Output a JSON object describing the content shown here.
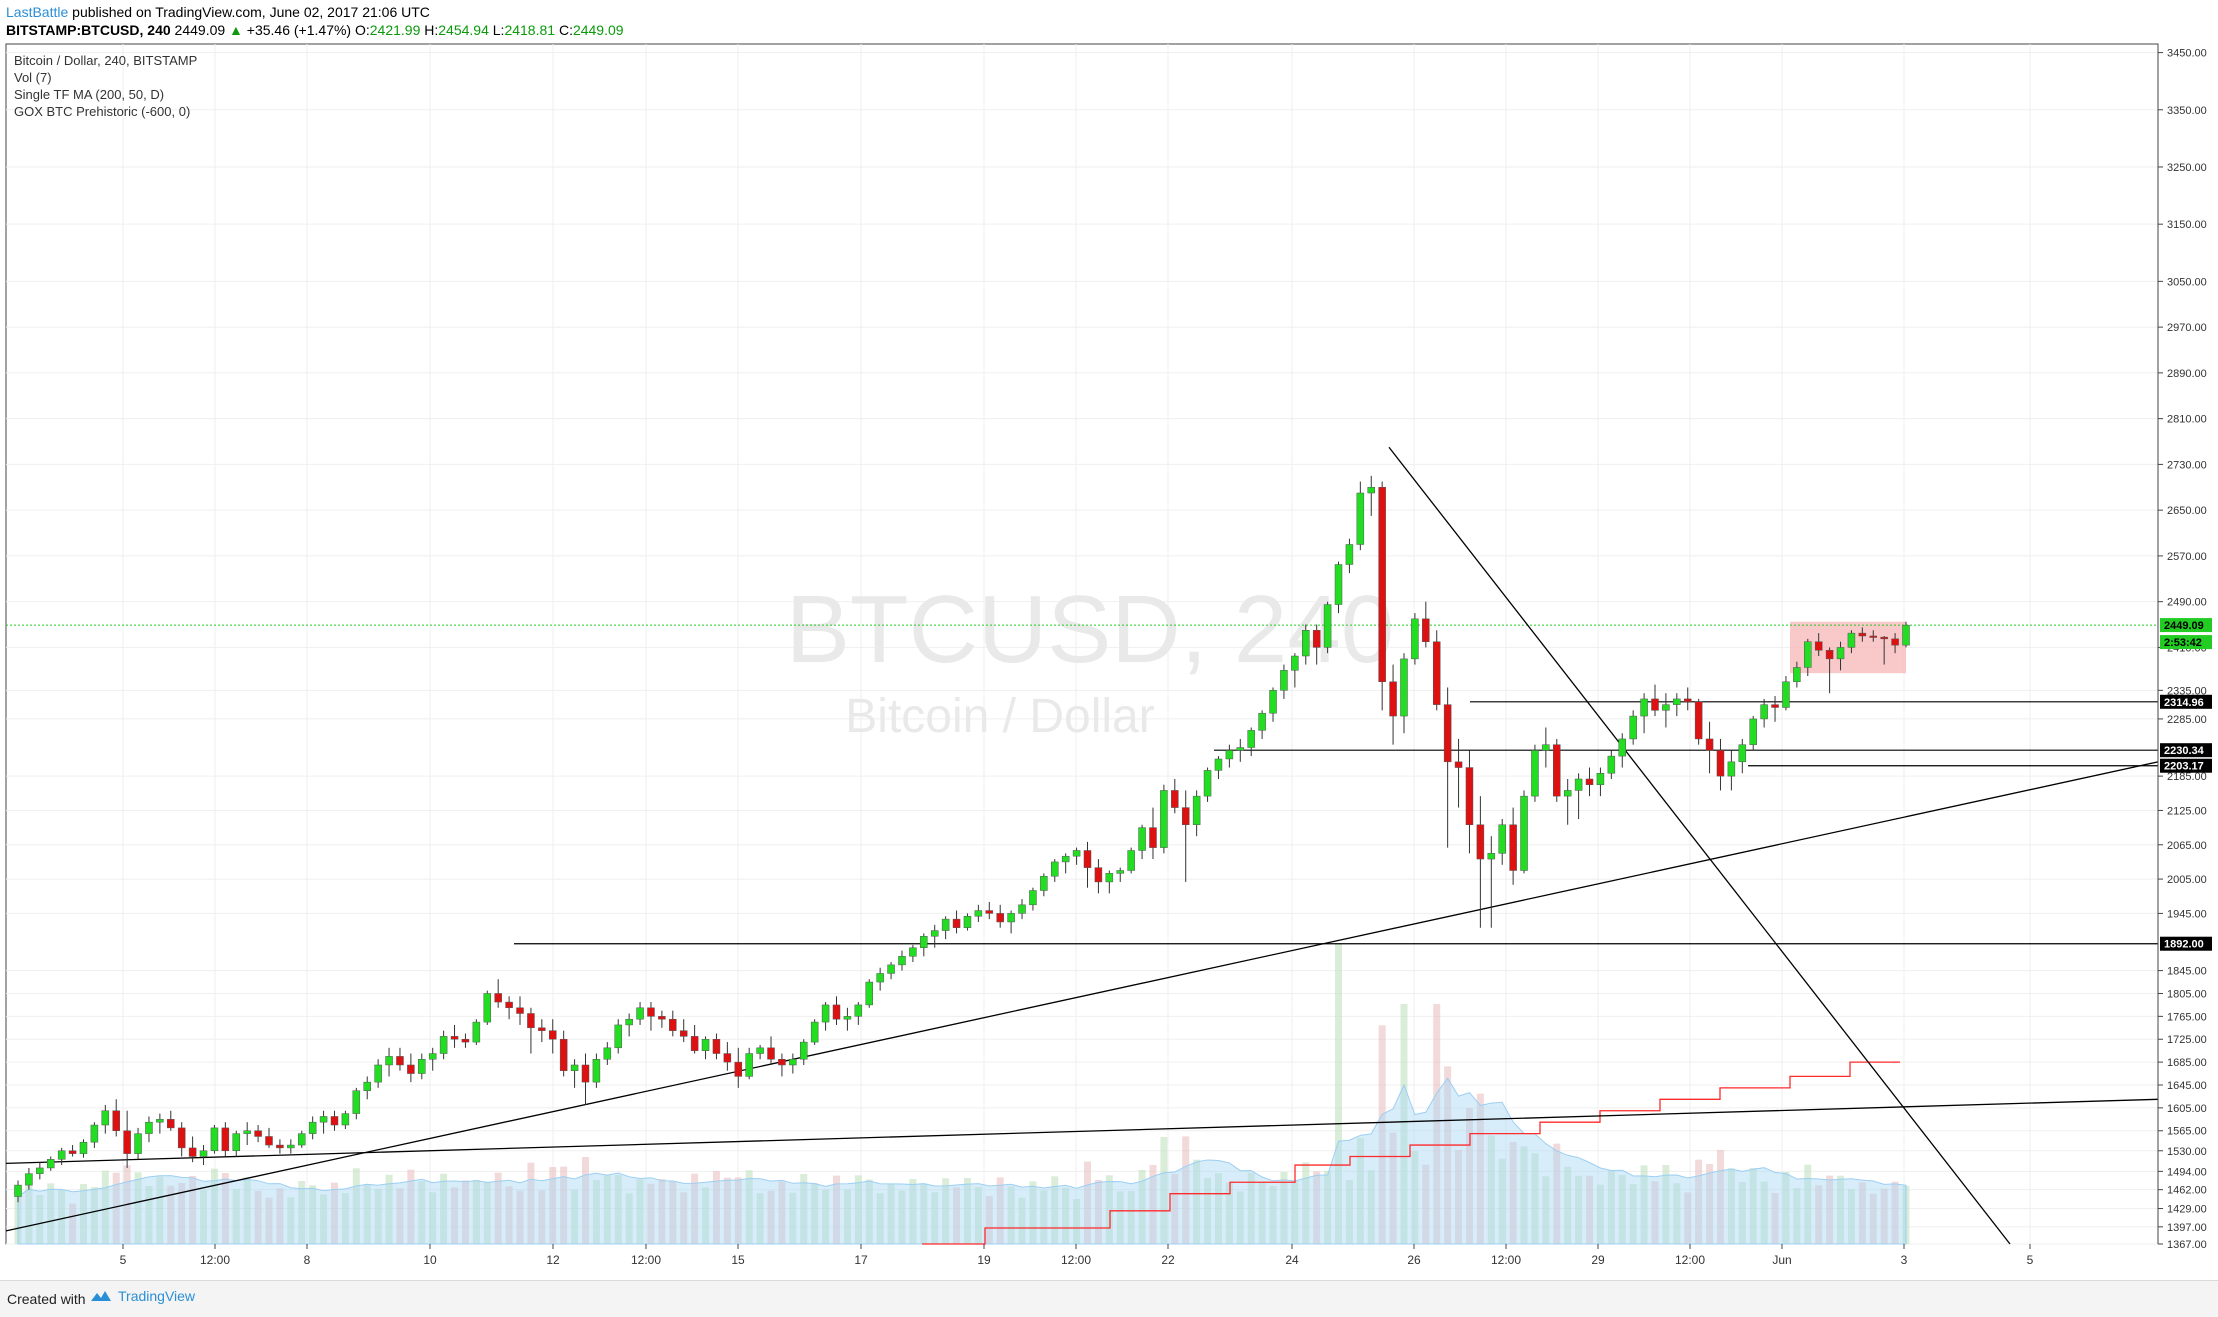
{
  "header": {
    "author": "LastBattle",
    "published_text": " published on TradingView.com, June 02, 2017 21:06 UTC",
    "symbol": "BITSTAMP:BTCUSD, 240",
    "last": "2449.09",
    "change": "+35.46 (+1.47%)",
    "open_label": "O:",
    "open": "2421.99",
    "high_label": "H:",
    "high": "2454.94",
    "low_label": "L:",
    "low": "2418.81",
    "close_label": "C:",
    "close": "2449.09"
  },
  "legend": {
    "line1": "Bitcoin / Dollar, 240, BITSTAMP",
    "line2": "Vol (7)",
    "line3": "Single TF MA (200, 50, D)",
    "line4": "GOX BTC Prehistoric (-600, 0)"
  },
  "watermark": {
    "symbol": "BTCUSD, 240",
    "name": "Bitcoin / Dollar"
  },
  "footer": {
    "created_with": "Created with",
    "brand": "TradingView"
  },
  "colors": {
    "up": "#22dd22",
    "down": "#dd1111",
    "line": "#000000",
    "ma": "#ff2a2a",
    "grid": "#efefef",
    "current_line": "#22cc22",
    "zone": "#f7b6b6"
  },
  "chart_data": {
    "type": "candlestick",
    "symbol": "BTCUSD",
    "exchange": "BITSTAMP",
    "interval": "240",
    "ylim": [
      1367,
      3465
    ],
    "y_ticks": [
      "3450.00",
      "3350.00",
      "3250.00",
      "3150.00",
      "3050.00",
      "2970.00",
      "2890.00",
      "2810.00",
      "2730.00",
      "2650.00",
      "2570.00",
      "2490.00",
      "2410.00",
      "2335.00",
      "2285.00",
      "2185.00",
      "2125.00",
      "2065.00",
      "2005.00",
      "1945.00",
      "1845.00",
      "1805.00",
      "1765.00",
      "1725.00",
      "1685.00",
      "1645.00",
      "1605.00",
      "1565.00",
      "1530.00",
      "1494.00",
      "1462.00",
      "1429.00",
      "1397.00",
      "1367.00"
    ],
    "x_ticks": [
      "5",
      "12:00",
      "8",
      "10",
      "12",
      "12:00",
      "15",
      "17",
      "19",
      "12:00",
      "22",
      "24",
      "26",
      "12:00",
      "29",
      "12:00",
      "Jun",
      "3",
      "5"
    ],
    "price_labels": [
      {
        "value": "2449.09",
        "kind": "last"
      },
      {
        "value": "2:53:42",
        "kind": "countdown"
      },
      {
        "value": "2314.96",
        "kind": "level"
      },
      {
        "value": "2230.34",
        "kind": "level"
      },
      {
        "value": "2203.17",
        "kind": "level"
      },
      {
        "value": "1892.00",
        "kind": "level"
      }
    ],
    "horizontal_levels": [
      2314.96,
      2230.34,
      2203.17,
      1892.0
    ],
    "resistance_zone": [
      2365,
      2455
    ],
    "candles": [
      [
        1450,
        1478,
        1440,
        1470
      ],
      [
        1470,
        1500,
        1462,
        1490
      ],
      [
        1490,
        1510,
        1480,
        1500
      ],
      [
        1500,
        1520,
        1495,
        1515
      ],
      [
        1515,
        1535,
        1505,
        1530
      ],
      [
        1530,
        1540,
        1520,
        1525
      ],
      [
        1525,
        1550,
        1518,
        1545
      ],
      [
        1545,
        1580,
        1535,
        1575
      ],
      [
        1575,
        1610,
        1560,
        1600
      ],
      [
        1600,
        1620,
        1555,
        1565
      ],
      [
        1565,
        1600,
        1500,
        1525
      ],
      [
        1525,
        1570,
        1515,
        1560
      ],
      [
        1560,
        1590,
        1545,
        1580
      ],
      [
        1580,
        1595,
        1560,
        1585
      ],
      [
        1585,
        1600,
        1565,
        1570
      ],
      [
        1570,
        1580,
        1520,
        1535
      ],
      [
        1535,
        1555,
        1510,
        1520
      ],
      [
        1520,
        1540,
        1505,
        1530
      ],
      [
        1530,
        1575,
        1525,
        1570
      ],
      [
        1570,
        1580,
        1520,
        1530
      ],
      [
        1530,
        1565,
        1520,
        1560
      ],
      [
        1560,
        1580,
        1540,
        1565
      ],
      [
        1565,
        1575,
        1545,
        1555
      ],
      [
        1555,
        1570,
        1535,
        1540
      ],
      [
        1540,
        1550,
        1525,
        1535
      ],
      [
        1535,
        1550,
        1525,
        1540
      ],
      [
        1540,
        1565,
        1535,
        1560
      ],
      [
        1560,
        1590,
        1550,
        1580
      ],
      [
        1580,
        1600,
        1560,
        1590
      ],
      [
        1590,
        1600,
        1565,
        1575
      ],
      [
        1575,
        1600,
        1568,
        1595
      ],
      [
        1595,
        1640,
        1585,
        1635
      ],
      [
        1635,
        1660,
        1620,
        1650
      ],
      [
        1650,
        1690,
        1640,
        1680
      ],
      [
        1680,
        1710,
        1660,
        1695
      ],
      [
        1695,
        1710,
        1670,
        1680
      ],
      [
        1680,
        1700,
        1650,
        1665
      ],
      [
        1665,
        1700,
        1655,
        1690
      ],
      [
        1690,
        1710,
        1670,
        1700
      ],
      [
        1700,
        1740,
        1690,
        1730
      ],
      [
        1730,
        1750,
        1710,
        1725
      ],
      [
        1725,
        1735,
        1710,
        1720
      ],
      [
        1720,
        1760,
        1715,
        1755
      ],
      [
        1755,
        1810,
        1750,
        1805
      ],
      [
        1805,
        1830,
        1780,
        1790
      ],
      [
        1790,
        1800,
        1760,
        1780
      ],
      [
        1780,
        1800,
        1750,
        1770
      ],
      [
        1770,
        1780,
        1700,
        1745
      ],
      [
        1745,
        1760,
        1720,
        1740
      ],
      [
        1740,
        1760,
        1700,
        1725
      ],
      [
        1725,
        1740,
        1660,
        1670
      ],
      [
        1670,
        1690,
        1640,
        1680
      ],
      [
        1680,
        1700,
        1610,
        1650
      ],
      [
        1650,
        1700,
        1640,
        1690
      ],
      [
        1690,
        1720,
        1680,
        1710
      ],
      [
        1710,
        1760,
        1700,
        1750
      ],
      [
        1750,
        1770,
        1730,
        1760
      ],
      [
        1760,
        1790,
        1750,
        1780
      ],
      [
        1780,
        1790,
        1740,
        1765
      ],
      [
        1765,
        1775,
        1745,
        1760
      ],
      [
        1760,
        1775,
        1730,
        1740
      ],
      [
        1740,
        1760,
        1720,
        1730
      ],
      [
        1730,
        1750,
        1700,
        1705
      ],
      [
        1705,
        1730,
        1690,
        1725
      ],
      [
        1725,
        1735,
        1690,
        1700
      ],
      [
        1700,
        1720,
        1670,
        1685
      ],
      [
        1685,
        1710,
        1640,
        1660
      ],
      [
        1660,
        1710,
        1655,
        1700
      ],
      [
        1700,
        1715,
        1690,
        1710
      ],
      [
        1710,
        1730,
        1680,
        1690
      ],
      [
        1690,
        1700,
        1660,
        1680
      ],
      [
        1680,
        1700,
        1665,
        1690
      ],
      [
        1690,
        1725,
        1680,
        1720
      ],
      [
        1720,
        1760,
        1715,
        1755
      ],
      [
        1755,
        1790,
        1740,
        1785
      ],
      [
        1785,
        1800,
        1750,
        1760
      ],
      [
        1760,
        1780,
        1740,
        1765
      ],
      [
        1765,
        1790,
        1750,
        1785
      ],
      [
        1785,
        1830,
        1780,
        1825
      ],
      [
        1825,
        1850,
        1810,
        1840
      ],
      [
        1840,
        1860,
        1830,
        1855
      ],
      [
        1855,
        1880,
        1845,
        1870
      ],
      [
        1870,
        1890,
        1860,
        1885
      ],
      [
        1885,
        1910,
        1870,
        1905
      ],
      [
        1905,
        1925,
        1885,
        1915
      ],
      [
        1915,
        1940,
        1900,
        1935
      ],
      [
        1935,
        1950,
        1910,
        1920
      ],
      [
        1920,
        1945,
        1915,
        1940
      ],
      [
        1940,
        1960,
        1930,
        1950
      ],
      [
        1950,
        1965,
        1935,
        1945
      ],
      [
        1945,
        1960,
        1920,
        1930
      ],
      [
        1930,
        1950,
        1910,
        1945
      ],
      [
        1945,
        1970,
        1935,
        1960
      ],
      [
        1960,
        1990,
        1950,
        1985
      ],
      [
        1985,
        2015,
        1975,
        2010
      ],
      [
        2010,
        2040,
        2000,
        2035
      ],
      [
        2035,
        2050,
        2015,
        2045
      ],
      [
        2045,
        2060,
        2030,
        2055
      ],
      [
        2055,
        2070,
        1990,
        2025
      ],
      [
        2025,
        2040,
        1980,
        2000
      ],
      [
        2000,
        2020,
        1980,
        2015
      ],
      [
        2015,
        2025,
        2000,
        2020
      ],
      [
        2020,
        2060,
        2015,
        2055
      ],
      [
        2055,
        2100,
        2040,
        2095
      ],
      [
        2095,
        2130,
        2040,
        2060
      ],
      [
        2060,
        2170,
        2050,
        2160
      ],
      [
        2160,
        2180,
        2120,
        2130
      ],
      [
        2130,
        2160,
        2000,
        2100
      ],
      [
        2100,
        2160,
        2080,
        2150
      ],
      [
        2150,
        2200,
        2140,
        2195
      ],
      [
        2195,
        2220,
        2180,
        2215
      ],
      [
        2215,
        2240,
        2200,
        2230
      ],
      [
        2230,
        2250,
        2210,
        2235
      ],
      [
        2235,
        2270,
        2220,
        2265
      ],
      [
        2265,
        2300,
        2250,
        2295
      ],
      [
        2295,
        2340,
        2280,
        2335
      ],
      [
        2335,
        2380,
        2320,
        2370
      ],
      [
        2370,
        2400,
        2340,
        2395
      ],
      [
        2395,
        2450,
        2380,
        2440
      ],
      [
        2440,
        2450,
        2380,
        2410
      ],
      [
        2410,
        2490,
        2400,
        2485
      ],
      [
        2485,
        2560,
        2470,
        2555
      ],
      [
        2555,
        2600,
        2540,
        2590
      ],
      [
        2590,
        2700,
        2580,
        2680
      ],
      [
        2680,
        2710,
        2640,
        2690
      ],
      [
        2690,
        2700,
        2300,
        2350
      ],
      [
        2350,
        2380,
        2240,
        2290
      ],
      [
        2290,
        2400,
        2260,
        2390
      ],
      [
        2390,
        2470,
        2380,
        2460
      ],
      [
        2460,
        2490,
        2410,
        2420
      ],
      [
        2420,
        2440,
        2300,
        2310
      ],
      [
        2310,
        2340,
        2060,
        2210
      ],
      [
        2210,
        2250,
        2130,
        2200
      ],
      [
        2200,
        2230,
        2050,
        2100
      ],
      [
        2100,
        2150,
        1920,
        2040
      ],
      [
        2040,
        2080,
        1920,
        2050
      ],
      [
        2050,
        2110,
        2030,
        2100
      ],
      [
        2100,
        2130,
        1995,
        2020
      ],
      [
        2020,
        2160,
        2015,
        2150
      ],
      [
        2150,
        2240,
        2140,
        2230
      ],
      [
        2230,
        2270,
        2200,
        2240
      ],
      [
        2240,
        2250,
        2140,
        2150
      ],
      [
        2150,
        2180,
        2100,
        2160
      ],
      [
        2160,
        2190,
        2110,
        2180
      ],
      [
        2180,
        2200,
        2150,
        2170
      ],
      [
        2170,
        2200,
        2150,
        2190
      ],
      [
        2190,
        2230,
        2180,
        2220
      ],
      [
        2220,
        2260,
        2200,
        2250
      ],
      [
        2250,
        2300,
        2240,
        2290
      ],
      [
        2290,
        2330,
        2260,
        2320
      ],
      [
        2320,
        2345,
        2290,
        2300
      ],
      [
        2300,
        2330,
        2270,
        2310
      ],
      [
        2310,
        2330,
        2290,
        2320
      ],
      [
        2320,
        2340,
        2300,
        2315
      ],
      [
        2315,
        2320,
        2240,
        2250
      ],
      [
        2250,
        2280,
        2190,
        2230
      ],
      [
        2230,
        2250,
        2160,
        2185
      ],
      [
        2185,
        2230,
        2160,
        2210
      ],
      [
        2210,
        2250,
        2190,
        2240
      ],
      [
        2240,
        2290,
        2230,
        2285
      ],
      [
        2285,
        2320,
        2270,
        2310
      ],
      [
        2310,
        2325,
        2280,
        2305
      ],
      [
        2305,
        2360,
        2300,
        2350
      ],
      [
        2350,
        2385,
        2340,
        2375
      ],
      [
        2375,
        2425,
        2360,
        2420
      ],
      [
        2420,
        2435,
        2395,
        2405
      ],
      [
        2405,
        2410,
        2330,
        2390
      ],
      [
        2390,
        2420,
        2370,
        2410
      ],
      [
        2410,
        2440,
        2400,
        2435
      ],
      [
        2435,
        2445,
        2420,
        2430
      ],
      [
        2430,
        2440,
        2420,
        2428
      ],
      [
        2428,
        2430,
        2380,
        2425
      ],
      [
        2425,
        2435,
        2400,
        2414
      ],
      [
        2414,
        2455,
        2410,
        2449
      ]
    ],
    "series": [
      {
        "type": "volume",
        "period": 7
      },
      {
        "type": "moving_average",
        "params": "200, 50, D"
      }
    ]
  }
}
